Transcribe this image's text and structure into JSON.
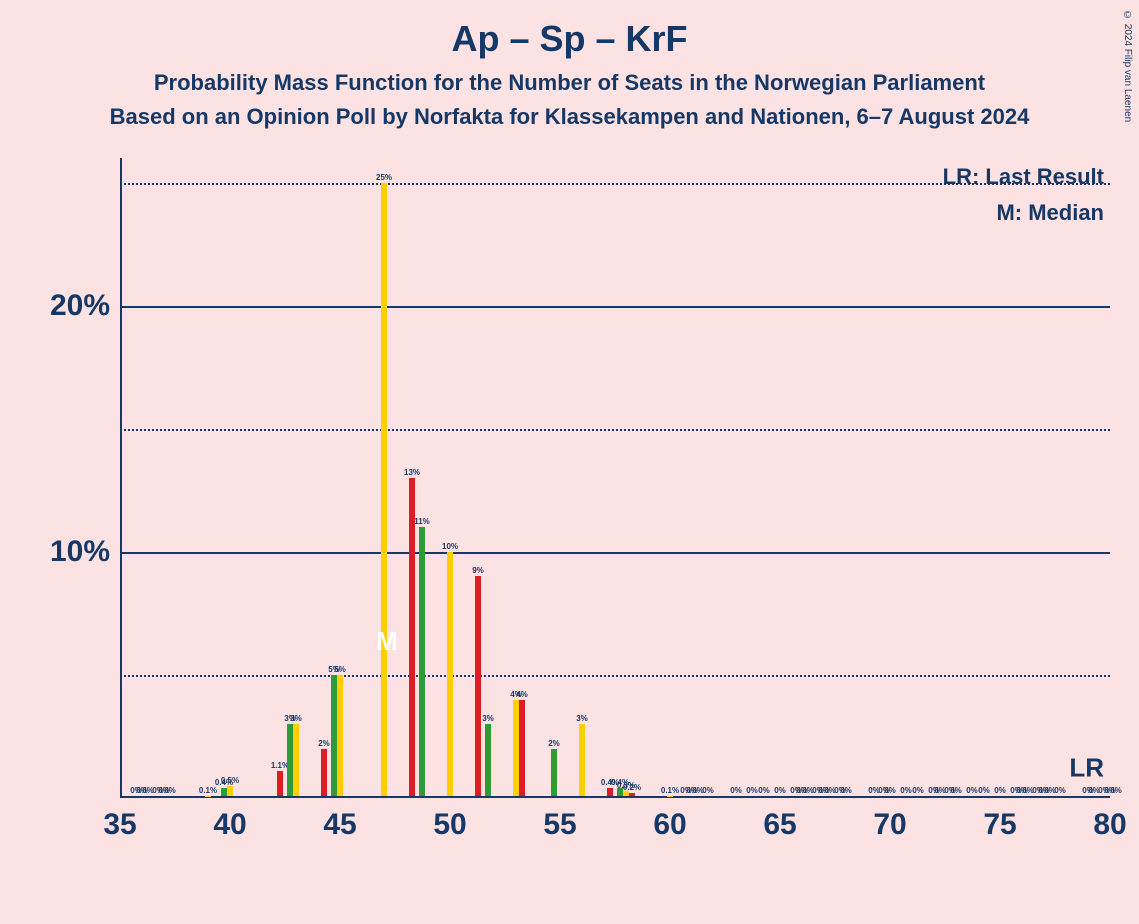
{
  "title": "Ap – Sp – KrF",
  "subtitle1": "Probability Mass Function for the Number of Seats in the Norwegian Parliament",
  "subtitle2": "Based on an Opinion Poll by Norfakta for Klassekampen and Nationen, 6–7 August 2024",
  "copyright": "© 2024 Filip van Laenen",
  "legend_lr": "LR: Last Result",
  "legend_m": "M: Median",
  "lr_mark": "LR",
  "median_mark": "M",
  "median_seat": 48,
  "lr_seat": 79,
  "chart": {
    "type": "bar",
    "background_color": "#fce2e2",
    "axis_color": "#153866",
    "text_color": "#153866",
    "grid_dotted_color": "#153866",
    "bar_colors": [
      "#2f9b34",
      "#fecf00",
      "#dd1c24"
    ],
    "xlim": [
      35,
      80
    ],
    "x_tick_step": 5,
    "x_ticks": [
      35,
      40,
      45,
      50,
      55,
      60,
      65,
      70,
      75,
      80
    ],
    "ylim": [
      0,
      26
    ],
    "y_gridlines": [
      {
        "value": 5,
        "style": "dotted",
        "label": ""
      },
      {
        "value": 10,
        "style": "solid",
        "label": "10%"
      },
      {
        "value": 15,
        "style": "dotted",
        "label": ""
      },
      {
        "value": 20,
        "style": "solid",
        "label": "20%"
      },
      {
        "value": 25,
        "style": "dotted",
        "label": ""
      }
    ],
    "bar_group_width": 0.82,
    "bars": [
      {
        "seat": 36,
        "values": [
          0,
          0,
          0
        ],
        "labels": [
          "0%",
          "0%",
          "0%"
        ]
      },
      {
        "seat": 37,
        "values": [
          0,
          0,
          0
        ],
        "labels": [
          "0%",
          "0%",
          "0%"
        ]
      },
      {
        "seat": 38,
        "values": [
          0,
          0,
          0
        ],
        "labels": [
          "",
          "",
          ""
        ]
      },
      {
        "seat": 39,
        "values": [
          0,
          0.1,
          0
        ],
        "labels": [
          "",
          "0.1%",
          ""
        ]
      },
      {
        "seat": 40,
        "values": [
          0.4,
          0.5,
          0
        ],
        "labels": [
          "0.4%",
          "0.5%",
          ""
        ]
      },
      {
        "seat": 41,
        "values": [
          0,
          0,
          0
        ],
        "labels": [
          "",
          "",
          ""
        ]
      },
      {
        "seat": 42,
        "values": [
          0,
          0,
          1.1
        ],
        "labels": [
          "",
          "",
          "1.1%"
        ]
      },
      {
        "seat": 43,
        "values": [
          3,
          3,
          0
        ],
        "labels": [
          "3%",
          "3%",
          ""
        ]
      },
      {
        "seat": 44,
        "values": [
          0,
          0,
          2
        ],
        "labels": [
          "",
          "",
          "2%"
        ]
      },
      {
        "seat": 45,
        "values": [
          5,
          5,
          0
        ],
        "labels": [
          "5%",
          "5%",
          ""
        ]
      },
      {
        "seat": 46,
        "values": [
          0,
          0,
          0
        ],
        "labels": [
          "",
          "",
          ""
        ]
      },
      {
        "seat": 47,
        "values": [
          0,
          25,
          0
        ],
        "labels": [
          "",
          "25%",
          ""
        ]
      },
      {
        "seat": 48,
        "values": [
          0,
          0,
          13
        ],
        "labels": [
          "",
          "",
          "13%"
        ]
      },
      {
        "seat": 49,
        "values": [
          11,
          0,
          0
        ],
        "labels": [
          "11%",
          "",
          ""
        ]
      },
      {
        "seat": 50,
        "values": [
          0,
          10,
          0
        ],
        "labels": [
          "",
          "10%",
          ""
        ]
      },
      {
        "seat": 51,
        "values": [
          0,
          0,
          9
        ],
        "labels": [
          "",
          "",
          "9%"
        ]
      },
      {
        "seat": 52,
        "values": [
          3,
          0,
          0
        ],
        "labels": [
          "3%",
          "",
          ""
        ]
      },
      {
        "seat": 53,
        "values": [
          0,
          4,
          4
        ],
        "labels": [
          "",
          "4%",
          "4%"
        ]
      },
      {
        "seat": 54,
        "values": [
          0,
          0,
          0
        ],
        "labels": [
          "",
          "",
          ""
        ]
      },
      {
        "seat": 55,
        "values": [
          2,
          0,
          0
        ],
        "labels": [
          "2%",
          "",
          ""
        ]
      },
      {
        "seat": 56,
        "values": [
          0,
          3,
          0
        ],
        "labels": [
          "",
          "3%",
          ""
        ]
      },
      {
        "seat": 57,
        "values": [
          0,
          0,
          0.4
        ],
        "labels": [
          "",
          "",
          "0.4%"
        ]
      },
      {
        "seat": 58,
        "values": [
          0.4,
          0.3,
          0.2
        ],
        "labels": [
          "0.4%",
          "0.3%",
          "0.2%"
        ]
      },
      {
        "seat": 59,
        "values": [
          0,
          0,
          0
        ],
        "labels": [
          "",
          "",
          ""
        ]
      },
      {
        "seat": 60,
        "values": [
          0,
          0.1,
          0
        ],
        "labels": [
          "",
          "0.1%",
          ""
        ]
      },
      {
        "seat": 61,
        "values": [
          0,
          0,
          0
        ],
        "labels": [
          "0%",
          "0%",
          "0%"
        ]
      },
      {
        "seat": 62,
        "values": [
          0,
          0,
          0
        ],
        "labels": [
          "0%",
          "",
          ""
        ]
      },
      {
        "seat": 63,
        "values": [
          0,
          0,
          0
        ],
        "labels": [
          "",
          "0%",
          ""
        ]
      },
      {
        "seat": 64,
        "values": [
          0,
          0,
          0
        ],
        "labels": [
          "0%",
          "",
          "0%"
        ]
      },
      {
        "seat": 65,
        "values": [
          0,
          0,
          0
        ],
        "labels": [
          "",
          "0%",
          ""
        ]
      },
      {
        "seat": 66,
        "values": [
          0,
          0,
          0
        ],
        "labels": [
          "0%",
          "0%",
          "0%"
        ]
      },
      {
        "seat": 67,
        "values": [
          0,
          0,
          0
        ],
        "labels": [
          "0%",
          "0%",
          "0%"
        ]
      },
      {
        "seat": 68,
        "values": [
          0,
          0,
          0
        ],
        "labels": [
          "0%",
          "0%",
          ""
        ]
      },
      {
        "seat": 69,
        "values": [
          0,
          0,
          0
        ],
        "labels": [
          "",
          "",
          "0%"
        ]
      },
      {
        "seat": 70,
        "values": [
          0,
          0,
          0
        ],
        "labels": [
          "0%",
          "0%",
          ""
        ]
      },
      {
        "seat": 71,
        "values": [
          0,
          0,
          0
        ],
        "labels": [
          "0%",
          "",
          "0%"
        ]
      },
      {
        "seat": 72,
        "values": [
          0,
          0,
          0
        ],
        "labels": [
          "",
          "0%",
          "0%"
        ]
      },
      {
        "seat": 73,
        "values": [
          0,
          0,
          0
        ],
        "labels": [
          "0%",
          "0%",
          ""
        ]
      },
      {
        "seat": 74,
        "values": [
          0,
          0,
          0
        ],
        "labels": [
          "0%",
          "",
          "0%"
        ]
      },
      {
        "seat": 75,
        "values": [
          0,
          0,
          0
        ],
        "labels": [
          "",
          "0%",
          ""
        ]
      },
      {
        "seat": 76,
        "values": [
          0,
          0,
          0
        ],
        "labels": [
          "0%",
          "0%",
          "0%"
        ]
      },
      {
        "seat": 77,
        "values": [
          0,
          0,
          0
        ],
        "labels": [
          "0%",
          "0%",
          "0%"
        ]
      },
      {
        "seat": 78,
        "values": [
          0,
          0,
          0
        ],
        "labels": [
          "0%",
          "",
          ""
        ]
      },
      {
        "seat": 79,
        "values": [
          0,
          0,
          0
        ],
        "labels": [
          "",
          "0%",
          "0%"
        ]
      },
      {
        "seat": 80,
        "values": [
          0,
          0,
          0
        ],
        "labels": [
          "0%",
          "0%",
          "0%"
        ]
      }
    ]
  }
}
